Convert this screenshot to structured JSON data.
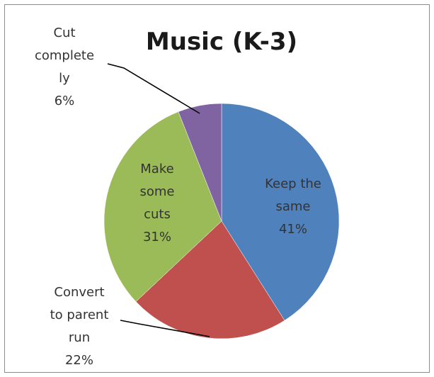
{
  "chart_data": {
    "type": "pie",
    "title": "Music (K-3)",
    "slices": [
      {
        "label_lines": [
          "Keep the",
          "same"
        ],
        "value": 41,
        "value_label": "41%",
        "color": "#4F81BD"
      },
      {
        "label_lines": [
          "Convert",
          "to parent",
          "run"
        ],
        "value": 22,
        "value_label": "22%",
        "color": "#C0504D"
      },
      {
        "label_lines": [
          "Make",
          "some",
          "cuts"
        ],
        "value": 31,
        "value_label": "31%",
        "color": "#9BBB59"
      },
      {
        "label_lines": [
          "Cut",
          "complete",
          "ly"
        ],
        "value": 6,
        "value_label": "6%",
        "color": "#8064A2"
      }
    ],
    "legend": "none"
  }
}
